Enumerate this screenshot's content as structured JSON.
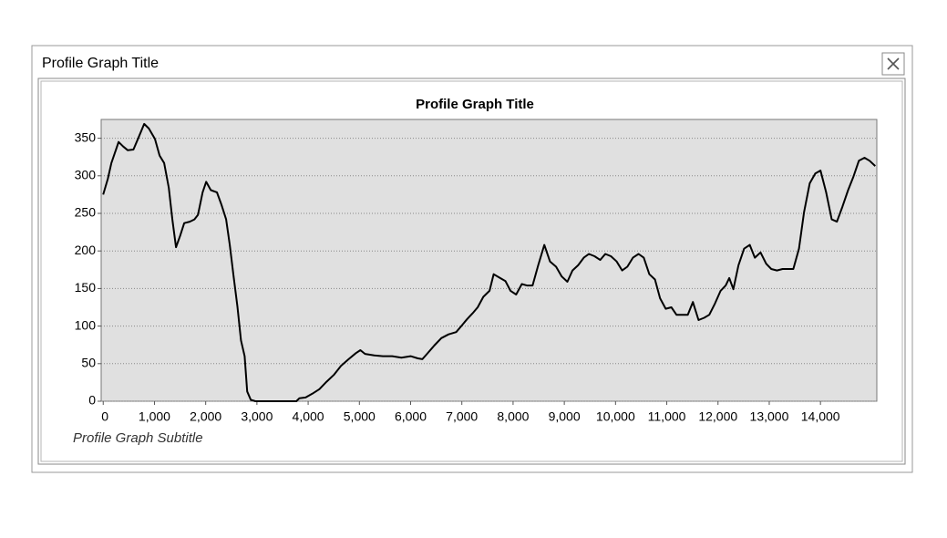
{
  "window": {
    "title": "Profile Graph Title"
  },
  "chart_data": {
    "type": "line",
    "title": "Profile Graph Title",
    "subtitle": "Profile Graph Subtitle",
    "x": [
      0,
      90,
      160,
      250,
      300,
      390,
      480,
      590,
      690,
      800,
      890,
      1010,
      1100,
      1190,
      1280,
      1350,
      1420,
      1500,
      1580,
      1690,
      1780,
      1850,
      1940,
      2010,
      2100,
      2220,
      2310,
      2400,
      2470,
      2540,
      2620,
      2690,
      2760,
      2810,
      2880,
      2970,
      3330,
      3770,
      3830,
      3950,
      4080,
      4220,
      4360,
      4500,
      4640,
      4790,
      4930,
      5020,
      5110,
      5290,
      5460,
      5640,
      5820,
      6000,
      6140,
      6230,
      6320,
      6460,
      6600,
      6740,
      6890,
      6990,
      7100,
      7210,
      7310,
      7420,
      7540,
      7620,
      7720,
      7850,
      7950,
      8060,
      8170,
      8270,
      8380,
      8490,
      8610,
      8720,
      8840,
      8950,
      9060,
      9160,
      9270,
      9380,
      9480,
      9590,
      9700,
      9800,
      9910,
      10020,
      10130,
      10230,
      10340,
      10450,
      10550,
      10660,
      10770,
      10870,
      10980,
      11090,
      11190,
      11300,
      11410,
      11510,
      11620,
      11730,
      11830,
      11940,
      12050,
      12150,
      12220,
      12300,
      12400,
      12510,
      12620,
      12720,
      12830,
      12940,
      13040,
      13150,
      13260,
      13360,
      13470,
      13580,
      13680,
      13790,
      13900,
      14000,
      14110,
      14220,
      14320,
      14430,
      14540,
      14640,
      14750,
      14860,
      14960,
      15070
    ],
    "values": [
      275,
      296,
      317,
      335,
      345,
      339,
      334,
      335,
      351,
      369,
      363,
      349,
      327,
      317,
      284,
      242,
      205,
      220,
      237,
      239,
      242,
      248,
      278,
      292,
      281,
      278,
      261,
      242,
      208,
      169,
      126,
      81,
      60,
      13,
      2,
      0,
      0,
      0,
      4,
      5,
      10,
      16,
      26,
      35,
      47,
      56,
      64,
      68,
      63,
      61,
      60,
      60,
      58,
      60,
      57,
      56,
      63,
      74,
      84,
      89,
      92,
      100,
      109,
      117,
      125,
      139,
      147,
      169,
      165,
      160,
      147,
      142,
      156,
      154,
      154,
      181,
      208,
      186,
      179,
      166,
      159,
      174,
      181,
      191,
      196,
      193,
      188,
      196,
      193,
      186,
      174,
      179,
      191,
      196,
      191,
      169,
      162,
      137,
      123,
      125,
      115,
      115,
      115,
      132,
      108,
      111,
      115,
      130,
      147,
      154,
      164,
      149,
      181,
      203,
      208,
      191,
      198,
      183,
      176,
      174,
      176,
      176,
      176,
      203,
      252,
      290,
      303,
      307,
      278,
      242,
      239,
      259,
      281,
      298,
      320,
      324,
      320,
      313
    ],
    "color": "#000000",
    "xlim": [
      -40,
      15100
    ],
    "ylim": [
      0,
      375
    ],
    "xticks": [
      0,
      {
        "value": 1000,
        "label": "1,000"
      },
      {
        "value": 2000,
        "label": "2,000"
      },
      {
        "value": 3000,
        "label": "3,000"
      },
      {
        "value": 4000,
        "label": "4,000"
      },
      {
        "value": 5000,
        "label": "5,000"
      },
      {
        "value": 6000,
        "label": "6,000"
      },
      {
        "value": 7000,
        "label": "7,000"
      },
      {
        "value": 8000,
        "label": "8,000"
      },
      {
        "value": 9000,
        "label": "9,000"
      },
      {
        "value": 10000,
        "label": "10,000"
      },
      {
        "value": 11000,
        "label": "11,000"
      },
      {
        "value": 12000,
        "label": "12,000"
      },
      {
        "value": 13000,
        "label": "13,000"
      },
      {
        "value": 14000,
        "label": "14,000"
      }
    ],
    "yticks": [
      0,
      50,
      100,
      150,
      200,
      250,
      300,
      350
    ],
    "grid": true
  }
}
